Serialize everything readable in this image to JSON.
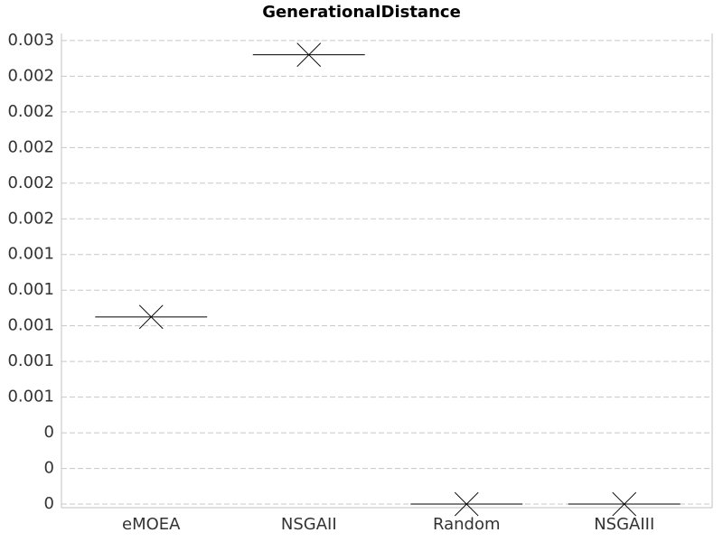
{
  "chart_data": {
    "type": "box",
    "title": "GenerationalDistance",
    "categories": [
      "eMOEA",
      "NSGAII",
      "Random",
      "NSGAIII"
    ],
    "values": [
      0.00105,
      0.00252,
      0,
      0
    ],
    "means": [
      0.00105,
      0.00252,
      0,
      0
    ],
    "color": "#000000",
    "ylim": [
      -2e-05,
      0.00264
    ],
    "yticks": [
      {
        "value": 0,
        "label": "0"
      },
      {
        "value": 0.0002,
        "label": "0"
      },
      {
        "value": 0.0004,
        "label": "0"
      },
      {
        "value": 0.0006,
        "label": "0.001"
      },
      {
        "value": 0.0008,
        "label": "0.001"
      },
      {
        "value": 0.001,
        "label": "0.001"
      },
      {
        "value": 0.0012,
        "label": "0.001"
      },
      {
        "value": 0.0014,
        "label": "0.001"
      },
      {
        "value": 0.0016,
        "label": "0.002"
      },
      {
        "value": 0.0018,
        "label": "0.002"
      },
      {
        "value": 0.002,
        "label": "0.002"
      },
      {
        "value": 0.0022,
        "label": "0.002"
      },
      {
        "value": 0.0024,
        "label": "0.002"
      },
      {
        "value": 0.0026,
        "label": "0.003"
      }
    ],
    "grid": true
  }
}
